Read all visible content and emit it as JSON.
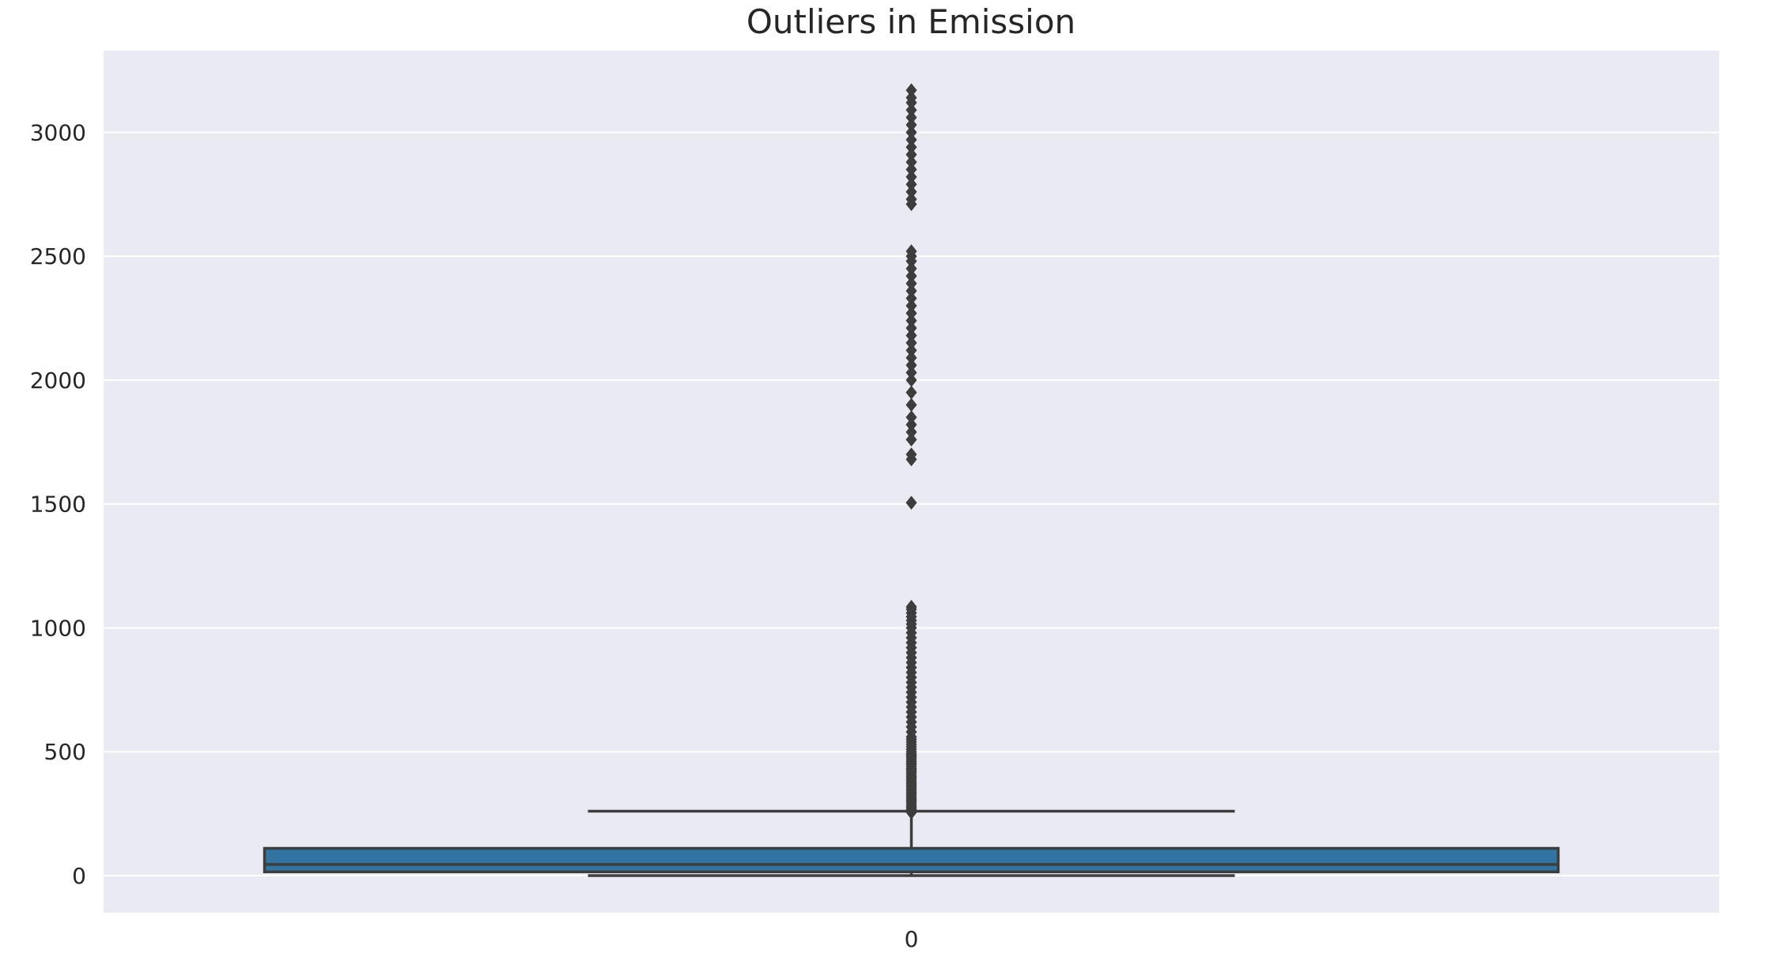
{
  "chart_data": {
    "type": "box",
    "title": "Outliers in Emission",
    "xlabel": "",
    "ylabel": "",
    "categories": [
      "0"
    ],
    "ylim": [
      -150,
      3330
    ],
    "yticks": [
      0,
      500,
      1000,
      1500,
      2000,
      2500,
      3000
    ],
    "ytick_labels": [
      "0",
      "500",
      "1000",
      "1500",
      "2000",
      "2500",
      "3000"
    ],
    "grid": true,
    "box": {
      "min": 0,
      "q1": 15,
      "median": 45,
      "q3": 110,
      "max": 260
    },
    "outliers": [
      255,
      262,
      268,
      275,
      282,
      290,
      298,
      305,
      312,
      320,
      328,
      335,
      342,
      350,
      358,
      365,
      372,
      380,
      388,
      395,
      402,
      410,
      418,
      425,
      432,
      440,
      448,
      455,
      462,
      470,
      478,
      485,
      492,
      500,
      510,
      520,
      530,
      540,
      550,
      560,
      580,
      600,
      620,
      640,
      660,
      680,
      700,
      720,
      740,
      760,
      780,
      800,
      820,
      840,
      860,
      880,
      900,
      920,
      940,
      960,
      980,
      1000,
      1015,
      1030,
      1045,
      1060,
      1075,
      1085,
      1505,
      1680,
      1700,
      1760,
      1790,
      1820,
      1850,
      1900,
      1950,
      2000,
      2030,
      2060,
      2090,
      2120,
      2150,
      2180,
      2210,
      2240,
      2270,
      2300,
      2330,
      2360,
      2390,
      2420,
      2450,
      2480,
      2500,
      2520,
      2710,
      2730,
      2760,
      2790,
      2820,
      2850,
      2880,
      2910,
      2940,
      2970,
      3000,
      3030,
      3060,
      3090,
      3120,
      3140,
      3170
    ],
    "colors": {
      "background": "#eaeaf2",
      "grid": "#ffffff",
      "box_fill": "#3274a1",
      "line": "#3d3d3d",
      "text": "#262626"
    }
  }
}
